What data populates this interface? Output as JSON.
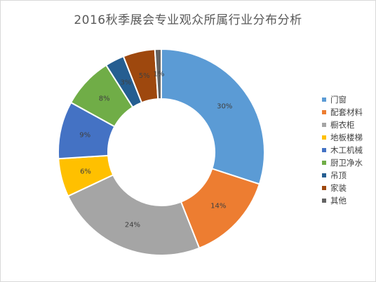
{
  "chart_data": {
    "type": "pie",
    "donut": true,
    "title": "2016秋季展会专业观众所属行业分布分析",
    "categories": [
      "门窗",
      "配套材料",
      "橱衣柜",
      "地板楼梯",
      "木工机械",
      "厨卫净水",
      "吊顶",
      "家装",
      "其他"
    ],
    "values": [
      30,
      14,
      24,
      6,
      9,
      8,
      3,
      5,
      1
    ],
    "labels": [
      "30%",
      "14%",
      "24%",
      "6%",
      "9%",
      "8%",
      "3%",
      "5%",
      "1%"
    ],
    "colors": [
      "#5B9BD5",
      "#ED7D31",
      "#A5A5A5",
      "#FFC000",
      "#4472C4",
      "#70AD47",
      "#255E91",
      "#9E480E",
      "#636363"
    ],
    "legend_position": "right"
  }
}
